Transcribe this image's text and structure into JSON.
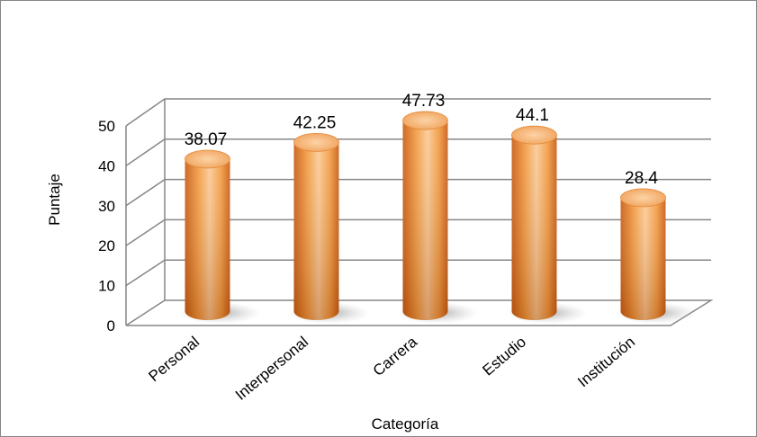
{
  "chart_data": {
    "type": "bar",
    "style": "3d-cylinder",
    "title": "",
    "xlabel": "Categoría",
    "ylabel": "Puntaje",
    "categories": [
      "Personal",
      "Interpersonal",
      "Carrera",
      "Estudio",
      "Institución"
    ],
    "values": [
      38.07,
      42.25,
      47.73,
      44.1,
      28.4
    ],
    "data_labels": [
      "38.07",
      "42.25",
      "47.73",
      "44.1",
      "28.4"
    ],
    "ylim": [
      0,
      50
    ],
    "yticks": [
      "0",
      "10",
      "20",
      "30",
      "40",
      "50"
    ],
    "grid": true,
    "legend": "none",
    "colors": {
      "bar_light": "#fbc994",
      "bar_mid": "#f39a3f",
      "bar_dark": "#c8590f",
      "top_cap": "#f8b878",
      "grid": "#868686",
      "floor_shadow": "#c9c9c9"
    }
  }
}
